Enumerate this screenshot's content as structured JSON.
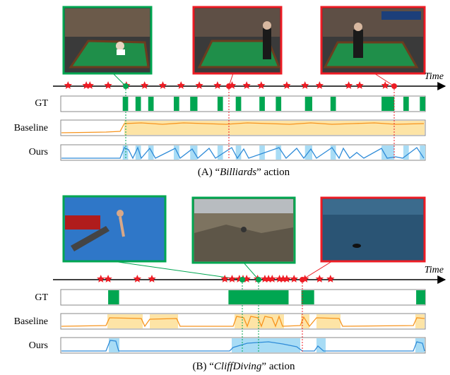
{
  "colors": {
    "green": "#00a651",
    "red": "#ed1c24",
    "orange_line": "#f7941d",
    "orange_fill": "#fde4a6",
    "blue_line": "#2e8bd8",
    "blue_fill": "#a8dcf5",
    "star": "#ed1c24"
  },
  "axis_label": "Time",
  "row_labels": [
    "GT",
    "Baseline",
    "Ours"
  ],
  "panels": [
    {
      "caption_prefix": "(A) “",
      "caption_italic": "Billiards",
      "caption_suffix": "” action",
      "thumbnails": [
        {
          "border": "green",
          "scene": "pool table, player leaning over table"
        },
        {
          "border": "red",
          "scene": "pool table, player standing"
        },
        {
          "border": "red",
          "scene": "pool table, player walking"
        }
      ],
      "stars": [
        0.02,
        0.07,
        0.08,
        0.13,
        0.18,
        0.23,
        0.28,
        0.33,
        0.38,
        0.43,
        0.47,
        0.51,
        0.55,
        0.62,
        0.67,
        0.71,
        0.79,
        0.82,
        0.89
      ],
      "gt_segments": [
        [
          0.17,
          0.185
        ],
        [
          0.205,
          0.22
        ],
        [
          0.24,
          0.255
        ],
        [
          0.31,
          0.325
        ],
        [
          0.355,
          0.375
        ],
        [
          0.43,
          0.445
        ],
        [
          0.48,
          0.495
        ],
        [
          0.545,
          0.56
        ],
        [
          0.59,
          0.605
        ],
        [
          0.67,
          0.69
        ],
        [
          0.74,
          0.755
        ],
        [
          0.88,
          0.915
        ],
        [
          0.94,
          0.955
        ],
        [
          0.985,
          1.0
        ]
      ]
    },
    {
      "caption_prefix": "(B) “",
      "caption_italic": "CliffDiving",
      "caption_suffix": "” action",
      "thumbnails": [
        {
          "border": "green",
          "scene": "diver jumping from platform against blue sky"
        },
        {
          "border": "green",
          "scene": "rocky cliff landscape"
        },
        {
          "border": "red",
          "scene": "open sea water"
        }
      ],
      "stars": [
        0.11,
        0.13,
        0.21,
        0.25,
        0.45,
        0.47,
        0.49,
        0.5,
        0.51,
        0.54,
        0.56,
        0.57,
        0.58,
        0.6,
        0.61,
        0.62,
        0.64,
        0.67,
        0.71,
        0.74
      ],
      "gt_segments": [
        [
          0.13,
          0.16
        ],
        [
          0.46,
          0.625
        ],
        [
          0.66,
          0.695
        ],
        [
          0.975,
          1.0
        ]
      ]
    }
  ]
}
